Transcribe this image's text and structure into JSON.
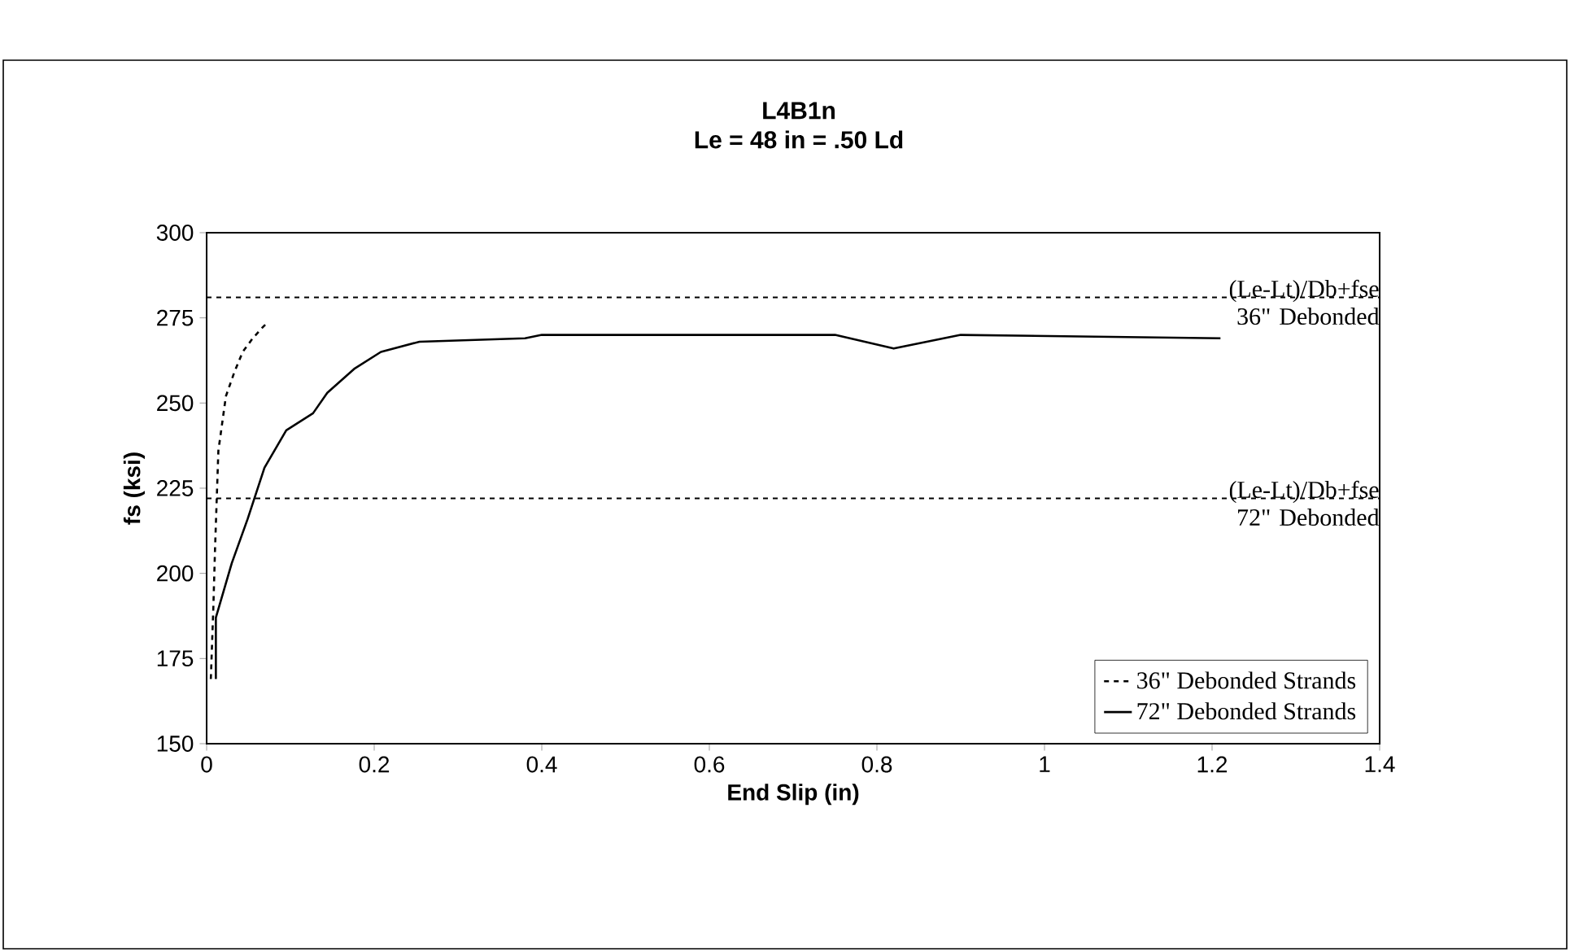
{
  "chart_data": {
    "type": "line",
    "title": "L4B1n",
    "subtitle": "Le = 48 in = .50 Ld",
    "xlabel": "End Slip  (in)",
    "ylabel": "fs  (ksi)",
    "xlim": [
      0,
      1.4
    ],
    "ylim": [
      150,
      300
    ],
    "xticks": [
      0,
      0.2,
      0.4,
      0.6,
      0.8,
      1,
      1.2,
      1.4
    ],
    "yticks": [
      150,
      175,
      200,
      225,
      250,
      275,
      300
    ],
    "grid": false,
    "legend": "bottom right",
    "marker": "none",
    "series": [
      {
        "name": "36\" Debonded Strands",
        "color": "#000000",
        "line_style": "dashed",
        "x": [
          0.005,
          0.008,
          0.01,
          0.014,
          0.023,
          0.033,
          0.043,
          0.055,
          0.066,
          0.07
        ],
        "values": [
          169,
          190,
          207,
          236,
          252,
          259,
          265,
          269,
          272,
          273
        ]
      },
      {
        "name": "72\" Debonded Strands",
        "color": "#000000",
        "line_style": "solid",
        "x": [
          0.011,
          0.011,
          0.03,
          0.049,
          0.069,
          0.095,
          0.127,
          0.144,
          0.176,
          0.208,
          0.254,
          0.38,
          0.4,
          0.75,
          0.82,
          0.9,
          1.21
        ],
        "values": [
          169,
          187,
          203,
          216,
          231,
          242,
          247,
          253,
          260,
          265,
          268,
          269,
          270,
          270,
          266,
          270,
          269
        ]
      }
    ],
    "ref_lines": [
      {
        "axis": "y",
        "value": 281,
        "label": "(Le-Lt)/Db+fse 36\" Debonded",
        "color": "#000000",
        "line_style": "dashed"
      },
      {
        "axis": "y",
        "value": 222,
        "label": "(Le-Lt)/Db+fse 72\" Debonded",
        "color": "#000000",
        "line_style": "dashed"
      }
    ]
  }
}
